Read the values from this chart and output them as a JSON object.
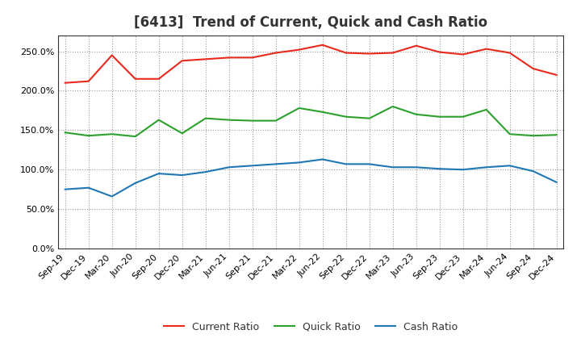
{
  "title": "[6413]  Trend of Current, Quick and Cash Ratio",
  "x_labels": [
    "Sep-19",
    "Dec-19",
    "Mar-20",
    "Jun-20",
    "Sep-20",
    "Dec-20",
    "Mar-21",
    "Jun-21",
    "Sep-21",
    "Dec-21",
    "Mar-22",
    "Jun-22",
    "Sep-22",
    "Dec-22",
    "Mar-23",
    "Jun-23",
    "Sep-23",
    "Dec-23",
    "Mar-24",
    "Jun-24",
    "Sep-24",
    "Dec-24"
  ],
  "current_ratio": [
    210,
    212,
    245,
    215,
    215,
    238,
    240,
    242,
    242,
    248,
    252,
    258,
    248,
    247,
    248,
    257,
    249,
    246,
    253,
    248,
    228,
    220
  ],
  "quick_ratio": [
    147,
    143,
    145,
    142,
    163,
    146,
    165,
    163,
    162,
    162,
    178,
    173,
    167,
    165,
    180,
    170,
    167,
    167,
    176,
    145,
    143,
    144
  ],
  "cash_ratio": [
    75,
    77,
    66,
    83,
    95,
    93,
    97,
    103,
    105,
    107,
    109,
    113,
    107,
    107,
    103,
    103,
    101,
    100,
    103,
    105,
    98,
    84
  ],
  "current_color": "#e8291c",
  "quick_color": "#2ca02c",
  "cash_color": "#1f77b4",
  "ylim": [
    0,
    270
  ],
  "yticks": [
    0,
    50,
    100,
    150,
    200,
    250
  ],
  "background_color": "#ffffff",
  "plot_bg_color": "#ffffff",
  "grid_color": "#999999",
  "title_fontsize": 12,
  "legend_fontsize": 9,
  "tick_fontsize": 8
}
